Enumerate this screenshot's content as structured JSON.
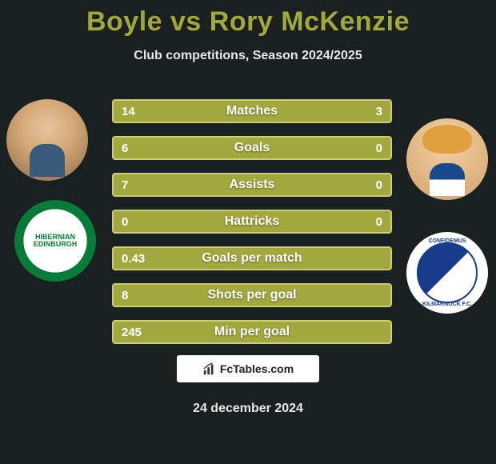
{
  "header": {
    "title": "Boyle vs Rory McKenzie",
    "subtitle": "Club competitions, Season 2024/2025"
  },
  "players": {
    "left": {
      "name": "Boyle",
      "portrait_bg": "#d4a878"
    },
    "right": {
      "name": "Rory McKenzie",
      "portrait_bg": "#e8c090"
    }
  },
  "clubs": {
    "left": {
      "name": "Hibernian",
      "text": "HIBERNIAN EDINBURGH",
      "primary": "#0a7a3a"
    },
    "right": {
      "name": "Kilmarnock",
      "text_top": "CONFIDEMUS",
      "text_bottom": "KILMARNOCK F.C.",
      "primary": "#1a3a8a"
    }
  },
  "stats": {
    "type": "comparison-bars",
    "bar_color": "#a3a73f",
    "bar_border_color": "#c9cd78",
    "label_fontsize": 16,
    "value_fontsize": 15,
    "text_color": "#ffffff",
    "rows": [
      {
        "label": "Matches",
        "left": "14",
        "right": "3"
      },
      {
        "label": "Goals",
        "left": "6",
        "right": "0"
      },
      {
        "label": "Assists",
        "left": "7",
        "right": "0"
      },
      {
        "label": "Hattricks",
        "left": "0",
        "right": "0"
      },
      {
        "label": "Goals per match",
        "left": "0.43",
        "right": ""
      },
      {
        "label": "Shots per goal",
        "left": "8",
        "right": ""
      },
      {
        "label": "Min per goal",
        "left": "245",
        "right": ""
      }
    ]
  },
  "footer": {
    "site": "FcTables.com",
    "date": "24 december 2024"
  },
  "colors": {
    "background": "#1a1f1f",
    "accent": "#a3a73f",
    "text": "#ffffff",
    "muted": "#e8e8e8"
  }
}
